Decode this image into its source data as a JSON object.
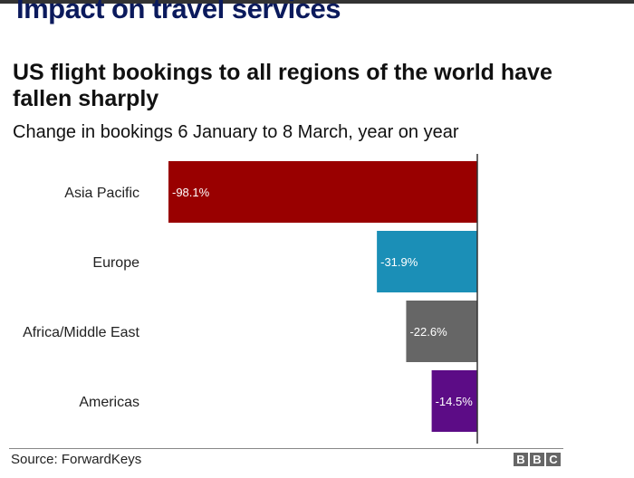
{
  "slide_title": "Impact on travel services",
  "chart_data": {
    "type": "bar",
    "orientation": "horizontal",
    "title": "US flight bookings to all regions of the world have fallen sharply",
    "subtitle": "Change in bookings 6 January to 8 March, year on year",
    "categories": [
      "Asia Pacific",
      "Europe",
      "Africa/Middle East",
      "Americas"
    ],
    "values": [
      -98.1,
      -31.9,
      -22.6,
      -14.5
    ],
    "labels": [
      "-98.1%",
      "-31.9%",
      "-22.6%",
      "-14.5%"
    ],
    "colors": [
      "#990000",
      "#1b8fb7",
      "#666666",
      "#5c0c86"
    ],
    "xlim": [
      -100,
      0
    ],
    "source": "Source: ForwardKeys"
  },
  "logo": "BBC"
}
